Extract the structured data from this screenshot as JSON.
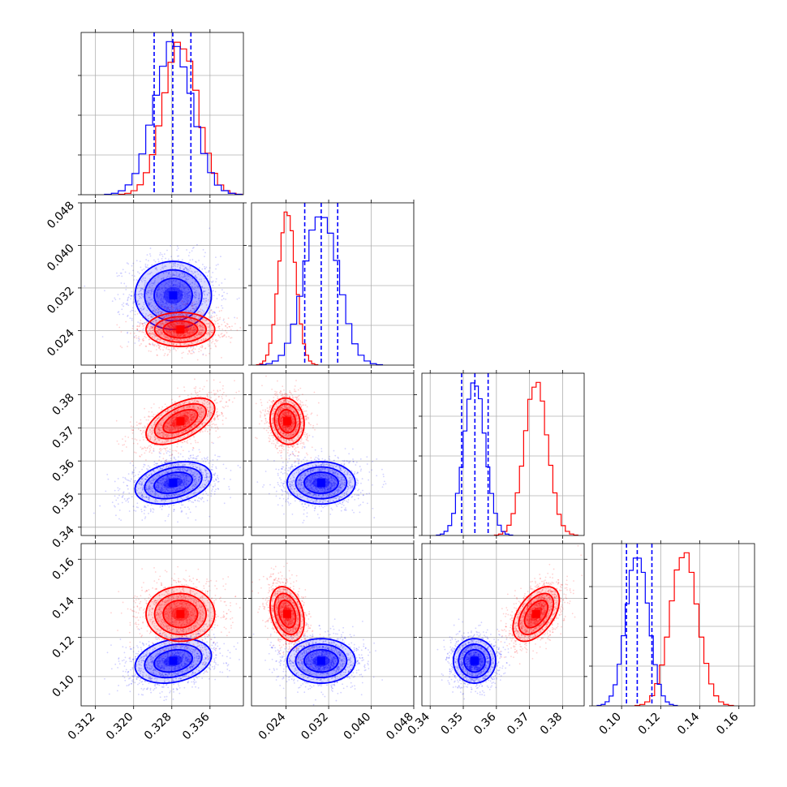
{
  "chart_data": {
    "type": "corner",
    "grid": true,
    "colors": {
      "series_a": "#ff0000",
      "series_b": "#0000ff"
    },
    "parameters": [
      {
        "range": [
          0.309,
          0.343
        ],
        "ticks": [
          "0.312",
          "0.320",
          "0.328",
          "0.336"
        ],
        "tick_values": [
          0.312,
          0.32,
          0.328,
          0.336
        ]
      },
      {
        "range": [
          0.0175,
          0.048
        ],
        "ticks": [
          "0.024",
          "0.032",
          "0.040",
          "0.048"
        ],
        "tick_values": [
          0.024,
          0.032,
          0.04,
          0.048
        ]
      },
      {
        "range": [
          0.3375,
          0.3865
        ],
        "ticks": [
          "0.34",
          "0.35",
          "0.36",
          "0.37",
          "0.38"
        ],
        "tick_values": [
          0.34,
          0.35,
          0.36,
          0.37,
          0.38
        ]
      },
      {
        "range": [
          0.085,
          0.168
        ],
        "ticks": [
          "0.10",
          "0.12",
          "0.14",
          "0.16"
        ],
        "tick_values": [
          0.1,
          0.12,
          0.14,
          0.16
        ]
      }
    ],
    "blue_quantiles": [
      [
        0.3243,
        0.3282,
        0.332
      ],
      [
        0.0275,
        0.0306,
        0.0337
      ],
      [
        0.3495,
        0.3535,
        0.3575
      ],
      [
        0.1025,
        0.108,
        0.1155
      ]
    ],
    "series_stats": {
      "red": {
        "mean": [
          0.3298,
          0.0242,
          0.372,
          0.132
        ],
        "std": [
          0.0036,
          0.0016,
          0.0035,
          0.007
        ]
      },
      "blue": {
        "mean": [
          0.3283,
          0.0306,
          0.3534,
          0.108
        ],
        "std": [
          0.004,
          0.0032,
          0.0032,
          0.0057
        ]
      }
    },
    "correlations": {
      "red": {
        "0-1": 0.0,
        "0-2": 0.55,
        "0-3": 0.0,
        "1-2": -0.1,
        "1-3": -0.3,
        "2-3": 0.5
      },
      "blue": {
        "0-1": 0.0,
        "0-2": 0.3,
        "0-3": 0.25,
        "1-2": 0.0,
        "1-3": 0.0,
        "2-3": 0.0
      }
    }
  }
}
